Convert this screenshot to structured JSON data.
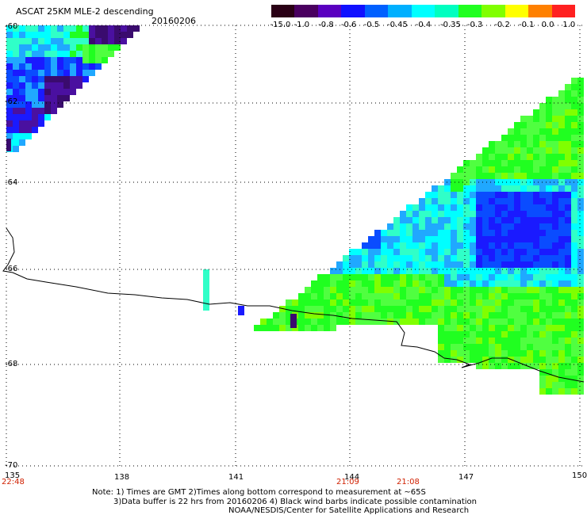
{
  "header": {
    "title": "ASCAT 25KM MLE-2 descending",
    "date": "20160206"
  },
  "colorbar": {
    "labels": [
      "-15.0",
      "-1.0",
      "-0.8",
      "-0.6",
      "-0.5",
      "-0.45",
      "-0.4",
      "-0.35",
      "-0.3",
      "-0.2",
      "-0.1",
      "0.0",
      "1.0"
    ],
    "colors": [
      "#2a0015",
      "#4a0060",
      "#5a00c0",
      "#1010ff",
      "#0060ff",
      "#00b0ff",
      "#00ffff",
      "#00ffc0",
      "#20ff20",
      "#80ff00",
      "#ffff00",
      "#ff8000",
      "#ff2020"
    ]
  },
  "map": {
    "lat_ticks": [
      "-60",
      "-62",
      "-64",
      "-66",
      "-68",
      "-70"
    ],
    "lon_ticks": [
      "135",
      "138",
      "141",
      "144",
      "147",
      "150"
    ],
    "times": [
      "22:48",
      "21:09",
      "21:08"
    ]
  },
  "footer": {
    "note_line1": "Note: 1) Times are GMT 2)Times along bottom correspond to measurement at ~65S",
    "note_line2": "3)Data buffer is 22 hrs from 20160206 4) Black wind barbs indicate possible contamination",
    "credit": "NOAA/NESDIS/Center for Satellite Applications and Research"
  }
}
